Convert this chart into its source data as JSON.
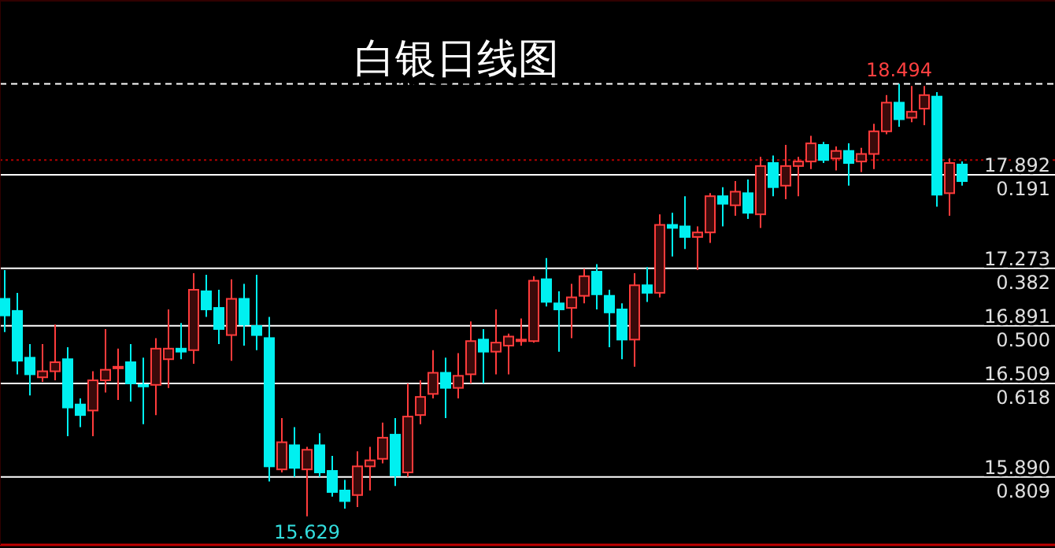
{
  "chart_data": {
    "type": "candlestick",
    "title": "白银日线图",
    "categories": [
      null,
      null,
      null,
      null,
      null,
      null,
      null,
      null,
      null,
      null,
      null,
      null,
      null,
      null,
      null,
      null,
      null,
      null,
      null,
      null,
      null,
      null,
      null,
      null,
      null,
      null,
      null,
      null,
      null,
      null,
      null,
      null,
      null,
      null,
      null,
      null,
      null,
      null,
      null,
      null,
      null,
      null,
      null,
      null,
      null,
      null,
      null,
      null,
      null,
      null,
      null,
      null,
      null,
      null,
      null,
      null,
      null,
      null,
      null,
      null,
      null,
      null,
      null,
      null,
      null,
      null,
      null,
      null,
      null,
      null,
      null,
      null,
      null,
      null,
      null,
      null,
      null
    ],
    "ohlc": [
      [
        17.07,
        17.26,
        16.85,
        16.96
      ],
      [
        16.99,
        17.11,
        16.57,
        16.66
      ],
      [
        16.68,
        16.77,
        16.43,
        16.57
      ],
      [
        16.55,
        16.77,
        16.52,
        16.59
      ],
      [
        16.59,
        16.9,
        16.53,
        16.65
      ],
      [
        16.67,
        16.75,
        16.16,
        16.35
      ],
      [
        16.37,
        16.41,
        16.22,
        16.3
      ],
      [
        16.33,
        16.59,
        16.16,
        16.53
      ],
      [
        16.53,
        16.87,
        16.45,
        16.6
      ],
      [
        16.61,
        16.74,
        16.4,
        16.62
      ],
      [
        16.65,
        16.77,
        16.39,
        16.51
      ],
      [
        16.5,
        16.68,
        16.24,
        16.49
      ],
      [
        16.5,
        16.81,
        16.3,
        16.74
      ],
      [
        16.67,
        17.0,
        16.48,
        16.74
      ],
      [
        16.74,
        16.91,
        16.67,
        16.72
      ],
      [
        16.73,
        17.24,
        16.64,
        17.13
      ],
      [
        17.12,
        17.23,
        16.95,
        17.0
      ],
      [
        17.01,
        17.13,
        16.77,
        16.87
      ],
      [
        16.83,
        17.2,
        16.66,
        17.07
      ],
      [
        17.07,
        17.17,
        16.76,
        16.9
      ],
      [
        16.89,
        17.23,
        16.73,
        16.83
      ],
      [
        16.81,
        16.95,
        15.86,
        15.96
      ],
      [
        15.94,
        16.28,
        15.92,
        16.12
      ],
      [
        16.1,
        16.22,
        15.89,
        15.95
      ],
      [
        15.94,
        16.09,
        15.629,
        16.07
      ],
      [
        16.1,
        16.18,
        15.89,
        15.92
      ],
      [
        15.93,
        16.03,
        15.76,
        15.79
      ],
      [
        15.8,
        15.87,
        15.68,
        15.73
      ],
      [
        15.77,
        16.06,
        15.69,
        15.96
      ],
      [
        15.96,
        16.09,
        15.8,
        16.0
      ],
      [
        16.01,
        16.25,
        15.98,
        16.15
      ],
      [
        16.17,
        16.28,
        15.83,
        15.9
      ],
      [
        15.92,
        16.51,
        15.89,
        16.29
      ],
      [
        16.3,
        16.53,
        16.24,
        16.42
      ],
      [
        16.44,
        16.73,
        16.41,
        16.58
      ],
      [
        16.58,
        16.68,
        16.28,
        16.48
      ],
      [
        16.48,
        16.71,
        16.41,
        16.56
      ],
      [
        16.57,
        16.92,
        16.51,
        16.79
      ],
      [
        16.8,
        16.87,
        16.51,
        16.72
      ],
      [
        16.72,
        17.0,
        16.57,
        16.78
      ],
      [
        16.76,
        16.84,
        16.57,
        16.82
      ],
      [
        16.79,
        16.94,
        16.76,
        16.8
      ],
      [
        16.79,
        17.22,
        16.78,
        17.19
      ],
      [
        17.2,
        17.34,
        17.02,
        17.05
      ],
      [
        17.04,
        17.12,
        16.72,
        17.0
      ],
      [
        17.01,
        17.17,
        16.81,
        17.08
      ],
      [
        17.09,
        17.27,
        17.04,
        17.22
      ],
      [
        17.25,
        17.3,
        17.0,
        17.1
      ],
      [
        17.09,
        17.13,
        16.75,
        16.98
      ],
      [
        17.0,
        17.04,
        16.67,
        16.8
      ],
      [
        16.8,
        17.24,
        16.62,
        17.16
      ],
      [
        17.16,
        17.28,
        17.05,
        17.11
      ],
      [
        17.11,
        17.63,
        17.08,
        17.56
      ],
      [
        17.56,
        17.64,
        17.35,
        17.54
      ],
      [
        17.55,
        17.75,
        17.4,
        17.48
      ],
      [
        17.48,
        17.55,
        17.26,
        17.51
      ],
      [
        17.51,
        17.77,
        17.44,
        17.75
      ],
      [
        17.75,
        17.81,
        17.55,
        17.7
      ],
      [
        17.69,
        17.85,
        17.62,
        17.78
      ],
      [
        17.77,
        17.86,
        17.6,
        17.64
      ],
      [
        17.63,
        18.01,
        17.54,
        17.95
      ],
      [
        17.97,
        18.02,
        17.75,
        17.81
      ],
      [
        17.82,
        18.09,
        17.73,
        17.95
      ],
      [
        17.95,
        18.01,
        17.75,
        17.98
      ],
      [
        17.98,
        18.15,
        17.93,
        18.1
      ],
      [
        18.09,
        18.11,
        17.97,
        17.99
      ],
      [
        18.0,
        18.08,
        17.92,
        18.05
      ],
      [
        18.05,
        18.1,
        17.82,
        17.97
      ],
      [
        17.98,
        18.07,
        17.91,
        18.03
      ],
      [
        18.03,
        18.23,
        17.93,
        18.18
      ],
      [
        18.18,
        18.42,
        18.16,
        18.37
      ],
      [
        18.37,
        18.494,
        18.21,
        18.26
      ],
      [
        18.27,
        18.48,
        18.24,
        18.31
      ],
      [
        18.33,
        18.48,
        18.22,
        18.42
      ],
      [
        18.41,
        18.44,
        17.68,
        17.76
      ],
      [
        17.77,
        18.0,
        17.62,
        17.97
      ],
      [
        17.96,
        17.98,
        17.82,
        17.85
      ]
    ],
    "ylim": [
      15.44,
      19.05
    ],
    "yticks": [
      17.892,
      17.273,
      16.891,
      16.509,
      {
        "value": 15.89,
        "label": "15.890"
      }
    ],
    "y2lim": [
      0.809,
      0.191
    ],
    "y2ticks": [
      0.191,
      0.382,
      {
        "value": 0.5,
        "label": "0.500"
      },
      0.618,
      0.809
    ],
    "ref_lines": [
      {
        "axis": "y",
        "value": 18.494,
        "color": "#ffffff",
        "line_style": "dashed"
      },
      {
        "axis": "y",
        "value": 17.99,
        "color": "#b00000",
        "line_style": "dotted"
      },
      {
        "axis": "y",
        "value": 17.892,
        "color": "#ffffff",
        "line_style": "solid"
      },
      {
        "axis": "y",
        "value": 17.273,
        "color": "#ffffff",
        "line_style": "solid"
      },
      {
        "axis": "y",
        "value": 16.891,
        "color": "#ffffff",
        "line_style": "solid"
      },
      {
        "axis": "y",
        "value": 16.509,
        "color": "#ffffff",
        "line_style": "solid"
      },
      {
        "axis": "y",
        "value": 15.89,
        "color": "#ffffff",
        "line_style": "solid"
      }
    ],
    "annotations": [
      {
        "text": "18.494",
        "y": 18.494
      },
      {
        "text": "15.629",
        "y": 15.629
      }
    ]
  }
}
